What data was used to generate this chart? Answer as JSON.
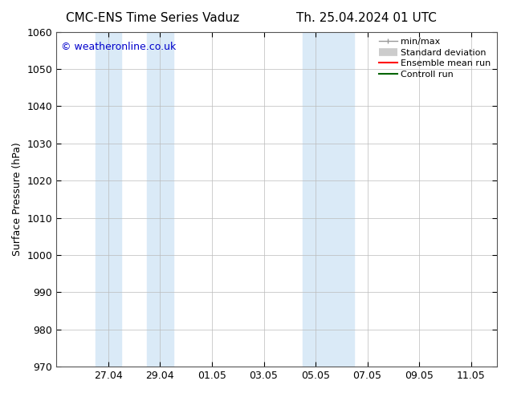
{
  "title_left": "CMC-ENS Time Series Vaduz",
  "title_right": "Th. 25.04.2024 01 UTC",
  "ylabel": "Surface Pressure (hPa)",
  "ylim": [
    970,
    1060
  ],
  "yticks": [
    970,
    980,
    990,
    1000,
    1010,
    1020,
    1030,
    1040,
    1050,
    1060
  ],
  "xtick_labels": [
    "27.04",
    "29.04",
    "01.05",
    "03.05",
    "05.05",
    "07.05",
    "09.05",
    "11.05"
  ],
  "xtick_positions": [
    2,
    4,
    6,
    8,
    10,
    12,
    14,
    16
  ],
  "xlim": [
    0,
    17.0
  ],
  "shaded_bands": [
    {
      "x_start": 1.5,
      "x_end": 2.5,
      "color": "#daeaf7"
    },
    {
      "x_start": 3.5,
      "x_end": 4.5,
      "color": "#daeaf7"
    },
    {
      "x_start": 9.5,
      "x_end": 10.5,
      "color": "#daeaf7"
    },
    {
      "x_start": 10.5,
      "x_end": 11.5,
      "color": "#daeaf7"
    }
  ],
  "watermark": "© weatheronline.co.uk",
  "watermark_color": "#0000cc",
  "bg_color": "#ffffff",
  "grid_color": "#bbbbbb",
  "spine_color": "#555555",
  "title_fontsize": 11,
  "axis_label_fontsize": 9,
  "tick_fontsize": 9,
  "legend_fontsize": 8,
  "watermark_fontsize": 9
}
